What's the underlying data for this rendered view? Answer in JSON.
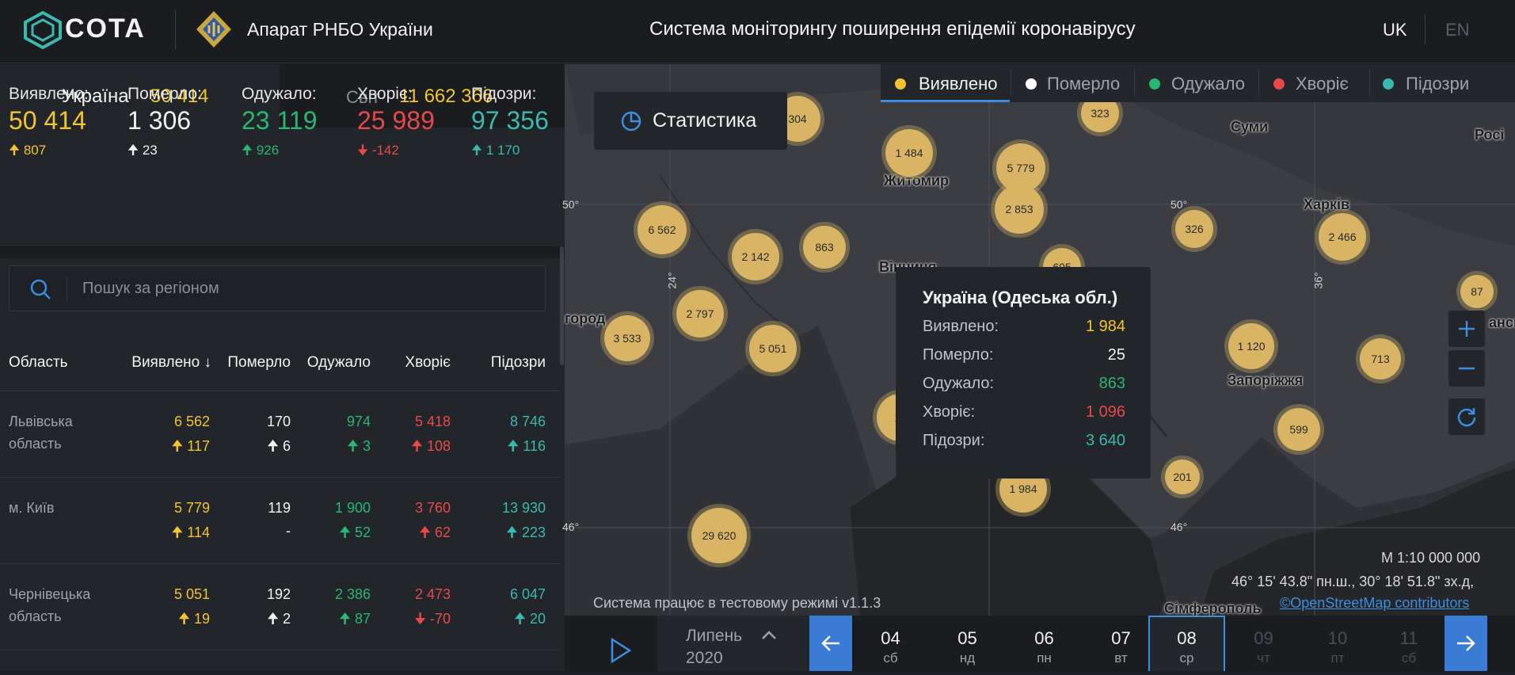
{
  "header": {
    "brand": "COTA",
    "org": "Апарат РНБО України",
    "title": "Система моніторингу поширення епідемії коронавірусу",
    "lang_uk": "UK",
    "lang_en": "EN"
  },
  "scope_tabs": {
    "ukraine_label": "Україна",
    "ukraine_value": "50 414",
    "world_label": "Світ",
    "world_value": "11 662 366"
  },
  "stats": [
    {
      "title": "Виявлено:",
      "value": "50 414",
      "delta": "807",
      "color": "#f4c430",
      "dir": "up"
    },
    {
      "title": "Померло:",
      "value": "1 306",
      "delta": "23",
      "color": "#f2f2f2",
      "dir": "up"
    },
    {
      "title": "Одужало:",
      "value": "23 119",
      "delta": "926",
      "color": "#2bb673",
      "dir": "up"
    },
    {
      "title": "Хворіє:",
      "value": "25 989",
      "delta": "-142",
      "color": "#e8494a",
      "dir": "down"
    },
    {
      "title": "Підозри:",
      "value": "97 356",
      "delta": "1 170",
      "color": "#3bb9b0",
      "dir": "up"
    }
  ],
  "search": {
    "placeholder": "Пошук за регіоном"
  },
  "table": {
    "headers": [
      "Область",
      "Виявлено ↓",
      "Померло",
      "Одужало",
      "Хворіє",
      "Підозри"
    ],
    "rows": [
      {
        "region": "Львівська область",
        "c1": "6 562",
        "d1": "117",
        "c2": "170",
        "d2": "6",
        "c3": "974",
        "d3": "3",
        "c4": "5 418",
        "d4": "108",
        "c5": "8 746",
        "d5": "116"
      },
      {
        "region": "м. Київ",
        "c1": "5 779",
        "d1": "114",
        "c2": "119",
        "d2": "-",
        "c3": "1 900",
        "d3": "52",
        "c4": "3 760",
        "d4": "62",
        "c5": "13 930",
        "d5": "223"
      },
      {
        "region": "Чернівецька область",
        "c1": "5 051",
        "d1": "19",
        "c2": "192",
        "d2": "2",
        "c3": "2 386",
        "d3": "87",
        "c4": "2 473",
        "d4": "-70",
        "c5": "6 047",
        "d5": "20"
      }
    ]
  },
  "map": {
    "stats_button": "Статистика",
    "filters": [
      "Виявлено",
      "Померло",
      "Одужало",
      "Хворіє",
      "Підозри"
    ],
    "filter_colors": [
      "#f4c430",
      "#ffffff",
      "#2bb673",
      "#e8494a",
      "#3bb9b0"
    ],
    "clusters": [
      "304",
      "323",
      "1 484",
      "5 779",
      "2 853",
      "6 562",
      "2 142",
      "863",
      "326",
      "2 466",
      "87",
      "3 533",
      "2 797",
      "5 051",
      "695",
      "1 120",
      "713",
      "599",
      "201",
      "1 984",
      "29 620",
      "17"
    ],
    "cities": [
      "Суми",
      "Житомир",
      "Харків",
      "Вінниця",
      "Запоріжжя",
      "Сімферополь",
      "Росі",
      "город",
      "ансь"
    ],
    "grid_labels": [
      "50°",
      "24°",
      "50°",
      "36°",
      "46°",
      "46°"
    ],
    "tooltip": {
      "title": "Україна (Одеська обл.)",
      "rows": [
        {
          "k": "Виявлено:",
          "v": "1 984"
        },
        {
          "k": "Померло:",
          "v": "25"
        },
        {
          "k": "Одужало:",
          "v": "863"
        },
        {
          "k": "Хворіє:",
          "v": "1 096"
        },
        {
          "k": "Підозри:",
          "v": "3 640"
        }
      ]
    },
    "scale": "M 1:10 000 000",
    "coords": "46° 15' 43.8\" пн.ш., 30° 18' 51.8\" зх.д,",
    "test_mode": "Система працює в тестовому режимі v1.1.3",
    "attribution": "©OpenStreetMap contributors"
  },
  "timeline": {
    "month": "Липень",
    "year": "2020",
    "days": [
      {
        "num": "04",
        "wd": "сб"
      },
      {
        "num": "05",
        "wd": "нд"
      },
      {
        "num": "06",
        "wd": "пн"
      },
      {
        "num": "07",
        "wd": "вт"
      },
      {
        "num": "08",
        "wd": "ср"
      },
      {
        "num": "09",
        "wd": "чт"
      },
      {
        "num": "10",
        "wd": "пт"
      },
      {
        "num": "11",
        "wd": "сб"
      }
    ]
  }
}
